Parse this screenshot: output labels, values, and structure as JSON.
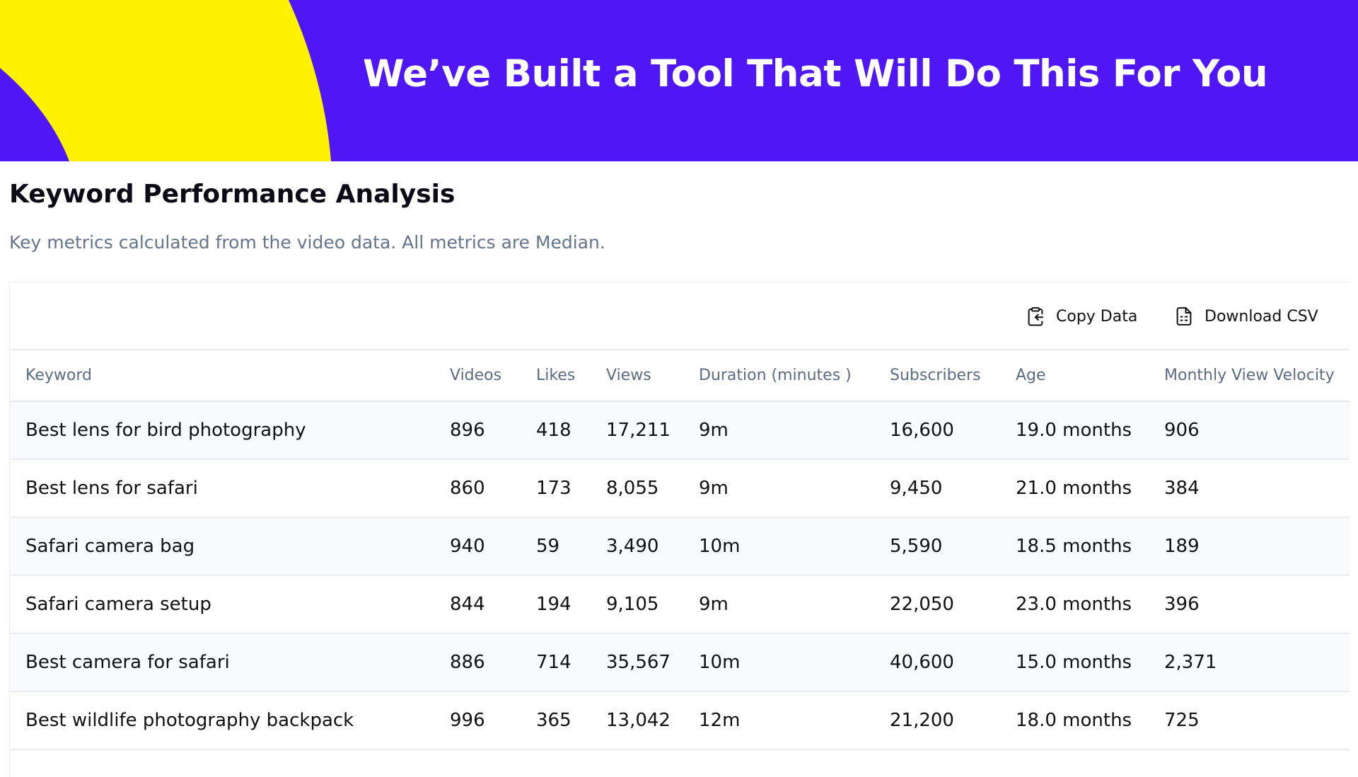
{
  "banner": {
    "title": "We’ve Built a Tool That Will Do This For You",
    "colors": {
      "background": "#4f17f5",
      "accent": "#fff200"
    }
  },
  "section": {
    "title": "Keyword Performance Analysis",
    "subtitle": "Key metrics calculated from the video data. All metrics are Median."
  },
  "toolbar": {
    "copy_label": "Copy Data",
    "copy_icon": "clipboard-copy-icon",
    "download_label": "Download CSV",
    "download_icon": "file-spreadsheet-icon"
  },
  "table": {
    "headers": [
      "Keyword",
      "Videos",
      "Likes",
      "Views",
      "Duration (minutes )",
      "Subscribers",
      "Age",
      "Monthly View Velocity"
    ],
    "rows": [
      [
        "Best lens for bird photography",
        "896",
        "418",
        "17,211",
        "9m",
        "16,600",
        "19.0 months",
        "906"
      ],
      [
        "Best lens for safari",
        "860",
        "173",
        "8,055",
        "9m",
        "9,450",
        "21.0 months",
        "384"
      ],
      [
        "Safari camera bag",
        "940",
        "59",
        "3,490",
        "10m",
        "5,590",
        "18.5 months",
        "189"
      ],
      [
        "Safari camera setup",
        "844",
        "194",
        "9,105",
        "9m",
        "22,050",
        "23.0 months",
        "396"
      ],
      [
        "Best camera for safari",
        "886",
        "714",
        "35,567",
        "10m",
        "40,600",
        "15.0 months",
        "2,371"
      ],
      [
        "Best wildlife photography backpack",
        "996",
        "365",
        "13,042",
        "12m",
        "21,200",
        "18.0 months",
        "725"
      ]
    ]
  }
}
